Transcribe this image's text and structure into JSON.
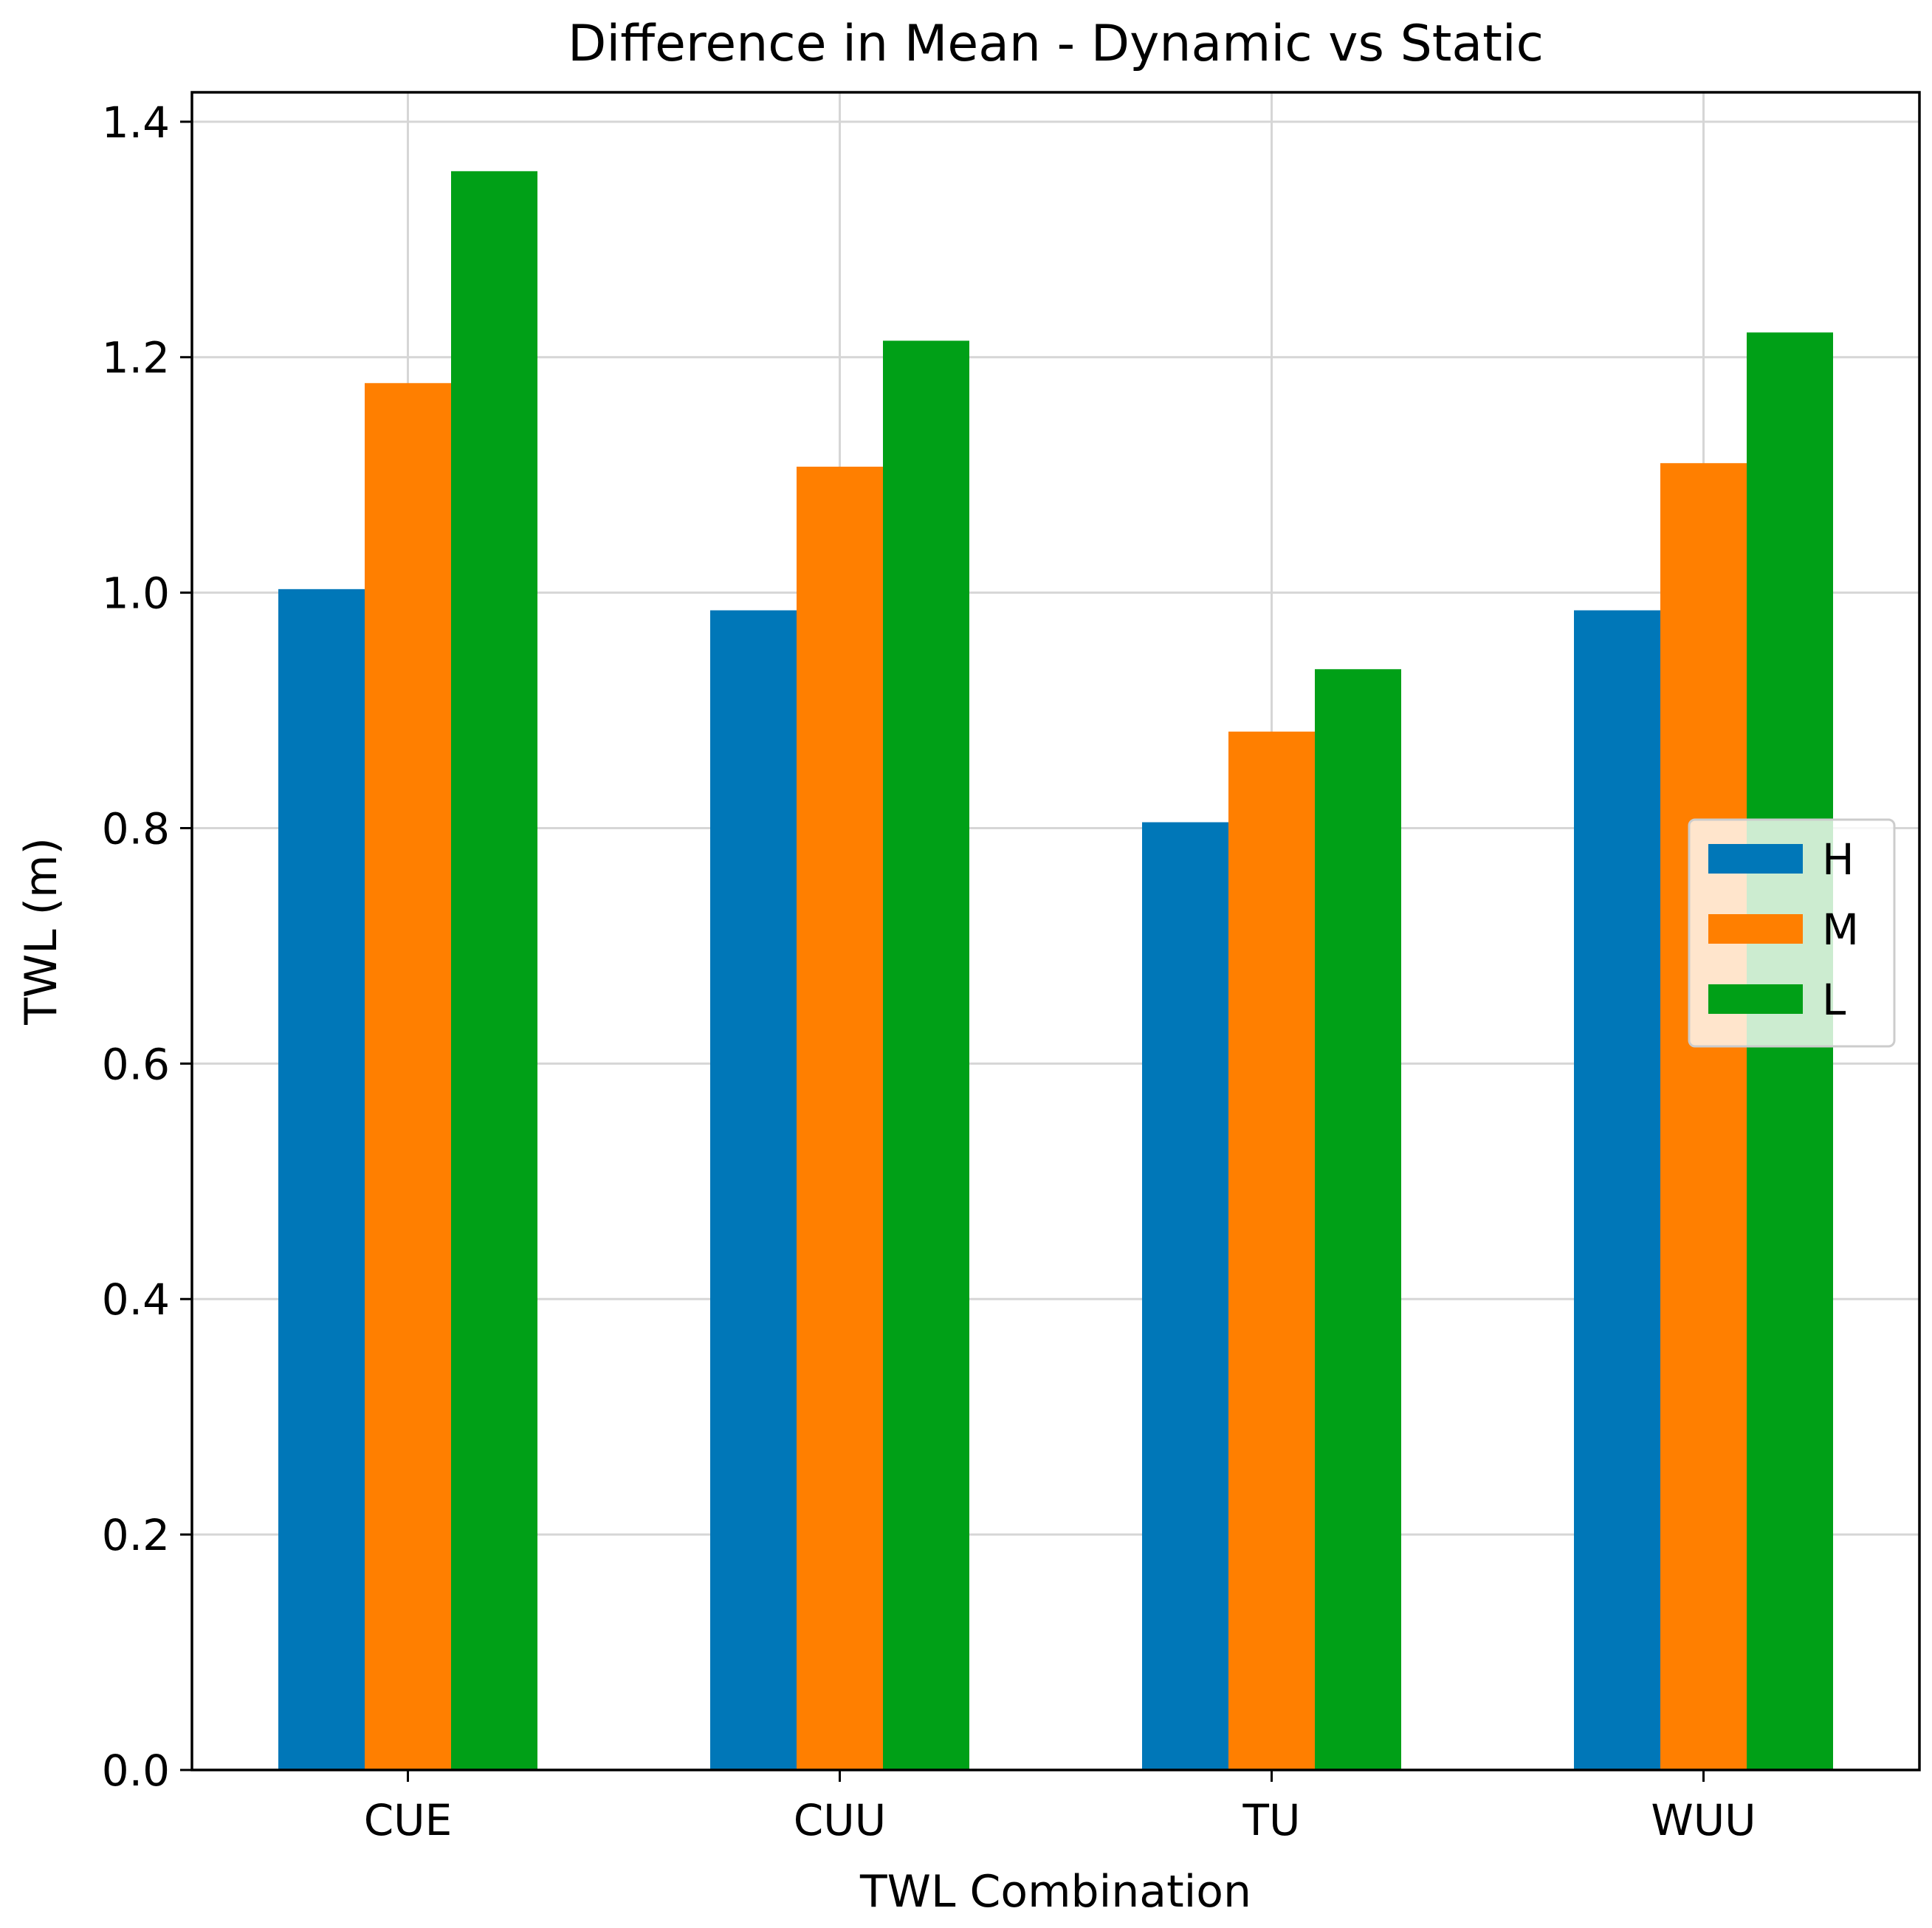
{
  "chart_data": {
    "type": "bar",
    "title": "Difference in Mean - Dynamic vs Static",
    "xlabel": "TWL Combination",
    "ylabel": "TWL (m)",
    "categories": [
      "CUE",
      "CUU",
      "TU",
      "WUU"
    ],
    "series": [
      {
        "name": "H",
        "color": "#0077b8",
        "values": [
          1.003,
          0.985,
          0.805,
          0.985
        ]
      },
      {
        "name": "M",
        "color": "#ff7f00",
        "values": [
          1.178,
          1.107,
          0.882,
          1.11
        ]
      },
      {
        "name": "L",
        "color": "#00a017",
        "values": [
          1.358,
          1.214,
          0.935,
          1.221
        ]
      }
    ],
    "ylim": [
      0,
      1.425
    ],
    "yticks": [
      0.0,
      0.2,
      0.4,
      0.6,
      0.8,
      1.0,
      1.2,
      1.4
    ],
    "ytick_labels": [
      "0.0",
      "0.2",
      "0.4",
      "0.6",
      "0.8",
      "1.0",
      "1.2",
      "1.4"
    ],
    "grid": true,
    "legend_position": "center-right"
  }
}
